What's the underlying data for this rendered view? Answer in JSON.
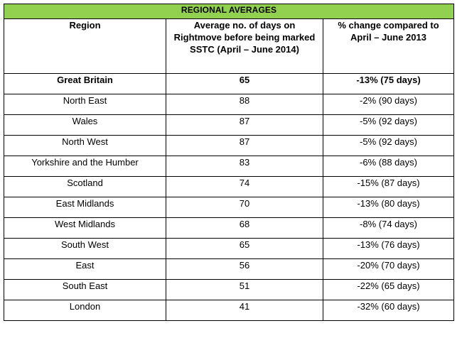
{
  "table": {
    "title": "REGIONAL AVERAGES",
    "title_bg": "#92D050",
    "headers": {
      "region": "Region",
      "days": "Average no. of days on Rightmove before being marked SSTC (April – June 2014)",
      "change": "% change compared to April – June 2013"
    },
    "rows": [
      {
        "region": "Great Britain",
        "days": "65",
        "change": "-13% (75 days)"
      },
      {
        "region": "North East",
        "days": "88",
        "change": "-2% (90 days)"
      },
      {
        "region": "Wales",
        "days": "87",
        "change": "-5% (92 days)"
      },
      {
        "region": "North West",
        "days": "87",
        "change": "-5% (92 days)"
      },
      {
        "region": "Yorkshire and the Humber",
        "days": "83",
        "change": "-6% (88 days)"
      },
      {
        "region": "Scotland",
        "days": "74",
        "change": "-15% (87 days)"
      },
      {
        "region": "East Midlands",
        "days": "70",
        "change": "-13% (80 days)"
      },
      {
        "region": "West Midlands",
        "days": "68",
        "change": "-8% (74 days)"
      },
      {
        "region": "South West",
        "days": "65",
        "change": "-13% (76 days)"
      },
      {
        "region": "East",
        "days": "56",
        "change": "-20% (70 days)"
      },
      {
        "region": "South East",
        "days": "51",
        "change": "-22% (65 days)"
      },
      {
        "region": "London",
        "days": "41",
        "change": "-32% (60 days)"
      }
    ]
  }
}
